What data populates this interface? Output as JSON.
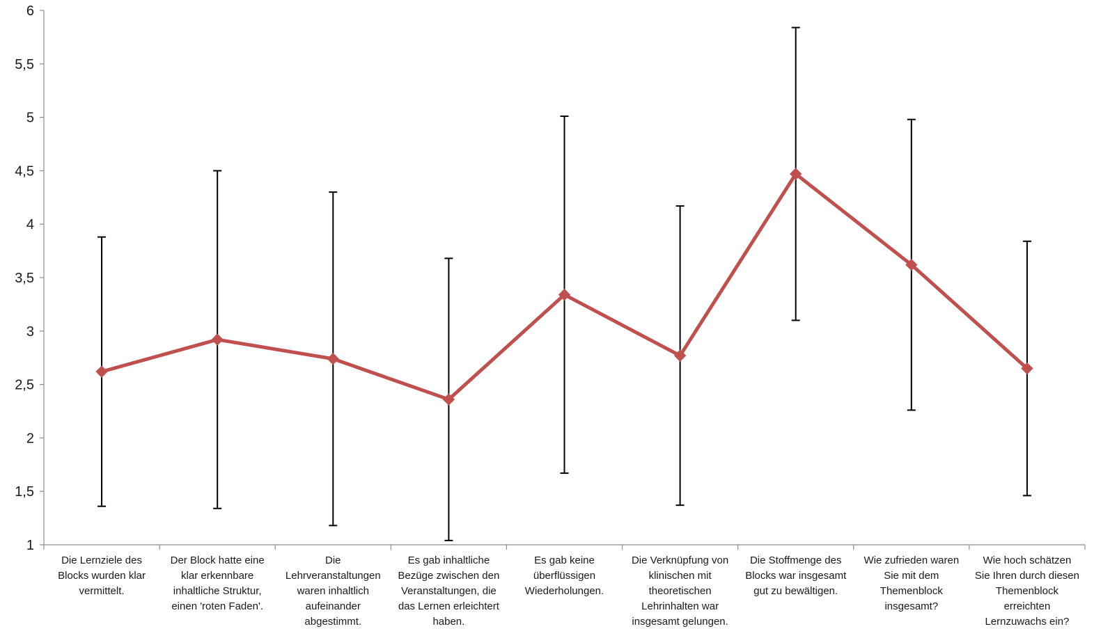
{
  "chart_data": {
    "type": "line",
    "title": "",
    "xlabel": "",
    "ylabel": "",
    "ylim": [
      1,
      6
    ],
    "yticks": [
      1,
      1.5,
      2,
      2.5,
      3,
      3.5,
      4,
      4.5,
      5,
      5.5,
      6
    ],
    "ytick_labels": [
      "1",
      "1,5",
      "2",
      "2,5",
      "3",
      "3,5",
      "4",
      "4,5",
      "5",
      "5,5",
      "6"
    ],
    "grid": false,
    "legend": "none",
    "line_color": "#c0504d",
    "errorbar_color": "#000000",
    "categories": [
      [
        "Die Lernziele des",
        "Blocks wurden klar",
        "vermittelt."
      ],
      [
        "Der Block hatte eine",
        "klar erkennbare",
        "inhaltliche Struktur,",
        "einen 'roten Faden'."
      ],
      [
        "Die",
        "Lehrveranstaltungen",
        "waren inhaltlich",
        "aufeinander",
        "abgestimmt."
      ],
      [
        "Es gab inhaltliche",
        "Bezüge zwischen den",
        "Veranstaltungen, die",
        "das Lernen erleichtert",
        "haben."
      ],
      [
        "Es gab keine",
        "überflüssigen",
        "Wiederholungen."
      ],
      [
        "Die Verknüpfung von",
        "klinischen mit",
        "theoretischen",
        "Lehrinhalten war",
        "insgesamt gelungen."
      ],
      [
        "Die Stoffmenge des",
        "Blocks war insgesamt",
        "gut zu bewältigen."
      ],
      [
        "Wie zufrieden waren",
        "Sie mit dem",
        "Themenblock",
        "insgesamt?"
      ],
      [
        "Wie hoch schätzen",
        "Sie Ihren durch diesen",
        "Themenblock",
        "erreichten",
        "Lernzuwachs ein?"
      ]
    ],
    "series": [
      {
        "values": [
          2.62,
          2.92,
          2.74,
          2.36,
          3.34,
          2.77,
          4.47,
          3.62,
          2.65
        ],
        "error_upper": [
          3.88,
          4.5,
          4.3,
          3.68,
          5.01,
          4.17,
          5.84,
          4.98,
          3.84
        ],
        "error_lower": [
          1.36,
          1.34,
          1.18,
          1.04,
          1.67,
          1.37,
          3.1,
          2.26,
          1.46
        ]
      }
    ]
  }
}
